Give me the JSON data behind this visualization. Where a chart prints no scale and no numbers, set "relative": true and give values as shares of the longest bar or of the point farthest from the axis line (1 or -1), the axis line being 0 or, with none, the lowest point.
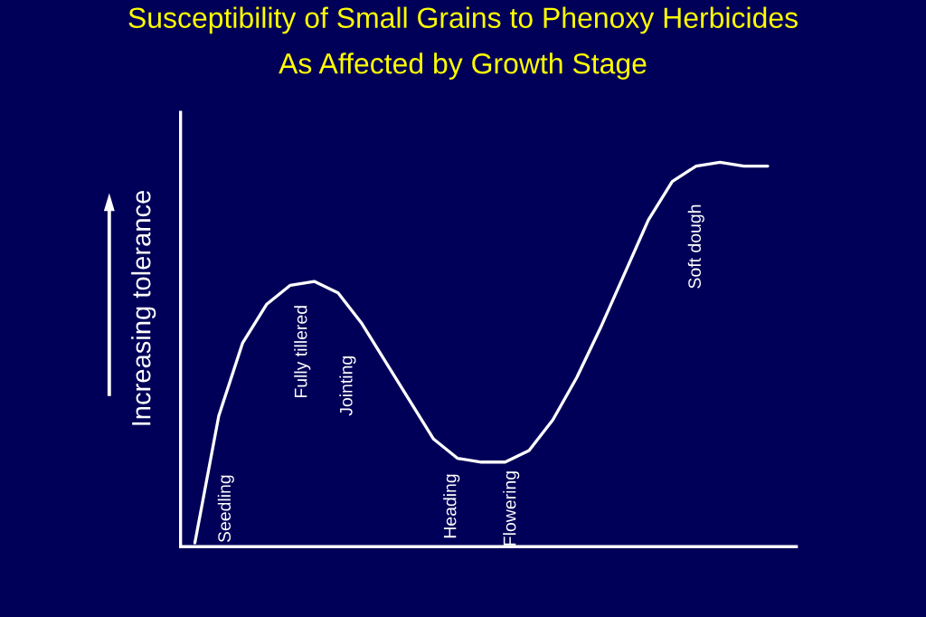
{
  "chart_data": {
    "type": "line",
    "relative": true,
    "title": "Susceptibility of Small Grains to Phenoxy Herbicides\nAs Affected by Growth Stage",
    "ylabel": "Increasing tolerance",
    "categories": [
      null,
      null,
      null,
      null,
      null,
      null,
      null,
      null,
      null,
      null,
      null,
      null,
      null,
      null,
      null,
      null,
      null,
      null,
      null,
      null,
      null,
      null,
      null,
      null,
      null
    ],
    "series": [
      {
        "color": "#ffffff",
        "values": [
          0.01,
          0.34,
          0.53,
          0.63,
          0.68,
          0.69,
          0.66,
          0.58,
          0.48,
          0.38,
          0.28,
          0.23,
          0.22,
          0.22,
          0.25,
          0.33,
          0.44,
          0.57,
          0.71,
          0.85,
          0.95,
          0.99,
          1.0,
          0.99,
          0.99
        ]
      }
    ],
    "annotations": [
      "Seedling",
      "Fully tillered",
      "Jointing",
      "Heading",
      "Flowering",
      "Soft dough"
    ],
    "legend": false,
    "marker": "none",
    "line_style": "solid"
  }
}
